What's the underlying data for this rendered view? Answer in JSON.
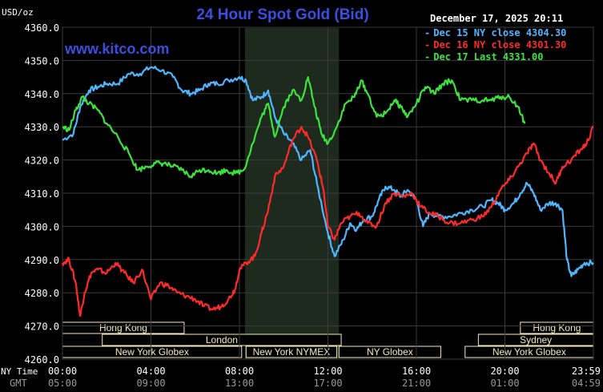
{
  "header": {
    "title": "24 Hour Spot Gold (Bid)",
    "site": "www.kitco.com",
    "date": "December 17, 2025 20:11",
    "unit": "USD/oz",
    "ny_time_label": "NY Time",
    "gmt_label": "GMT"
  },
  "colors": {
    "dec15": "#4fb6ff",
    "dec16": "#ff2a2a",
    "dec17": "#3de33d",
    "title": "#3a4fe0",
    "session_box": "#f5ecc0",
    "highlight": "#1e2a1e"
  },
  "chart_data": {
    "type": "line",
    "title": "24 Hour Spot Gold (Bid)",
    "ylabel": "USD/oz",
    "ylim": [
      4260,
      4360
    ],
    "yticks": [
      "4360.0",
      "4350.0",
      "4340.0",
      "4330.0",
      "4320.0",
      "4310.0",
      "4300.0",
      "4290.0",
      "4280.0",
      "4270.0",
      "4260.0"
    ],
    "xticks_ny": [
      "00:00",
      "04:00",
      "08:00",
      "12:00",
      "16:00",
      "20:00",
      "23:59"
    ],
    "xticks_gmt": [
      "05:00",
      "09:00",
      "13:00",
      "17:00",
      "21:00",
      "01:00",
      "04:59"
    ],
    "highlight_range_hours": [
      8.25,
      12.5
    ],
    "legend_placement": "top-right",
    "series": [
      {
        "name": "Dec 15 NY close 4304.30",
        "color": "#4fb6ff",
        "points": [
          [
            0,
            4326
          ],
          [
            0.5,
            4328
          ],
          [
            0.8,
            4336
          ],
          [
            1.2,
            4341
          ],
          [
            1.6,
            4342
          ],
          [
            2,
            4343
          ],
          [
            2.5,
            4343
          ],
          [
            3,
            4346
          ],
          [
            3.5,
            4346
          ],
          [
            4,
            4348
          ],
          [
            4.5,
            4347
          ],
          [
            5,
            4345
          ],
          [
            5.4,
            4341
          ],
          [
            5.8,
            4340
          ],
          [
            6.2,
            4341
          ],
          [
            6.6,
            4343
          ],
          [
            7,
            4343
          ],
          [
            7.5,
            4344
          ],
          [
            8,
            4345
          ],
          [
            8.3,
            4344
          ],
          [
            8.6,
            4338
          ],
          [
            9,
            4339
          ],
          [
            9.3,
            4341
          ],
          [
            9.6,
            4333
          ],
          [
            10,
            4328
          ],
          [
            10.4,
            4325
          ],
          [
            10.8,
            4320
          ],
          [
            11.2,
            4323
          ],
          [
            11.5,
            4313
          ],
          [
            12,
            4298
          ],
          [
            12.3,
            4291
          ],
          [
            12.7,
            4296
          ],
          [
            13,
            4301
          ],
          [
            13.3,
            4299
          ],
          [
            13.6,
            4302
          ],
          [
            14,
            4303
          ],
          [
            14.3,
            4308
          ],
          [
            14.6,
            4312
          ],
          [
            15,
            4311
          ],
          [
            15.3,
            4309
          ],
          [
            15.6,
            4311
          ],
          [
            16,
            4308
          ],
          [
            16.3,
            4300
          ],
          [
            16.6,
            4304
          ],
          [
            17,
            4303
          ],
          [
            17.5,
            4303
          ],
          [
            18,
            4304
          ],
          [
            18.5,
            4305
          ],
          [
            19,
            4306
          ],
          [
            19.4,
            4308
          ],
          [
            19.7,
            4307
          ],
          [
            20,
            4305
          ],
          [
            20.4,
            4307
          ],
          [
            20.7,
            4310
          ],
          [
            21,
            4313
          ],
          [
            21.3,
            4310
          ],
          [
            21.6,
            4305
          ],
          [
            22,
            4307
          ],
          [
            22.3,
            4307
          ],
          [
            22.6,
            4305
          ],
          [
            22.8,
            4290
          ],
          [
            23,
            4285
          ],
          [
            23.3,
            4287
          ],
          [
            23.6,
            4289
          ],
          [
            24,
            4289
          ]
        ]
      },
      {
        "name": "Dec 16 NY close 4301.30",
        "color": "#ff2a2a",
        "points": [
          [
            0,
            4289
          ],
          [
            0.3,
            4290
          ],
          [
            0.6,
            4283
          ],
          [
            0.8,
            4273
          ],
          [
            1,
            4280
          ],
          [
            1.3,
            4286
          ],
          [
            1.6,
            4287
          ],
          [
            2,
            4286
          ],
          [
            2.4,
            4289
          ],
          [
            2.8,
            4286
          ],
          [
            3.2,
            4283
          ],
          [
            3.6,
            4287
          ],
          [
            4,
            4278
          ],
          [
            4.4,
            4283
          ],
          [
            4.8,
            4282
          ],
          [
            5.2,
            4280
          ],
          [
            5.6,
            4279
          ],
          [
            6,
            4278
          ],
          [
            6.4,
            4276
          ],
          [
            6.8,
            4275
          ],
          [
            7.2,
            4276
          ],
          [
            7.5,
            4278
          ],
          [
            7.8,
            4281
          ],
          [
            8,
            4287
          ],
          [
            8.3,
            4289
          ],
          [
            8.7,
            4291
          ],
          [
            9,
            4298
          ],
          [
            9.3,
            4305
          ],
          [
            9.6,
            4315
          ],
          [
            10,
            4318
          ],
          [
            10.4,
            4326
          ],
          [
            10.8,
            4330
          ],
          [
            11.1,
            4327
          ],
          [
            11.5,
            4320
          ],
          [
            11.8,
            4311
          ],
          [
            12,
            4300
          ],
          [
            12.3,
            4296
          ],
          [
            12.6,
            4301
          ],
          [
            13,
            4303
          ],
          [
            13.4,
            4304
          ],
          [
            13.8,
            4301
          ],
          [
            14.2,
            4300
          ],
          [
            14.6,
            4307
          ],
          [
            15,
            4310
          ],
          [
            15.4,
            4309
          ],
          [
            15.8,
            4310
          ],
          [
            16.2,
            4306
          ],
          [
            16.6,
            4304
          ],
          [
            17,
            4303
          ],
          [
            17.5,
            4301
          ],
          [
            18,
            4301
          ],
          [
            18.5,
            4302
          ],
          [
            19,
            4303
          ],
          [
            19.4,
            4306
          ],
          [
            19.8,
            4311
          ],
          [
            20.2,
            4314
          ],
          [
            20.6,
            4318
          ],
          [
            21,
            4322
          ],
          [
            21.3,
            4325
          ],
          [
            21.6,
            4320
          ],
          [
            22,
            4316
          ],
          [
            22.3,
            4313
          ],
          [
            22.6,
            4318
          ],
          [
            23,
            4320
          ],
          [
            23.4,
            4323
          ],
          [
            23.7,
            4325
          ],
          [
            24,
            4330
          ]
        ]
      },
      {
        "name": "Dec 17 Last 4331.00",
        "color": "#3de33d",
        "points": [
          [
            0,
            4330
          ],
          [
            0.3,
            4329
          ],
          [
            0.6,
            4335
          ],
          [
            0.9,
            4339
          ],
          [
            1.2,
            4337
          ],
          [
            1.6,
            4335
          ],
          [
            2,
            4331
          ],
          [
            2.5,
            4327
          ],
          [
            3,
            4322
          ],
          [
            3.4,
            4317
          ],
          [
            3.8,
            4318
          ],
          [
            4.2,
            4319
          ],
          [
            4.6,
            4319
          ],
          [
            5,
            4318
          ],
          [
            5.4,
            4317
          ],
          [
            5.8,
            4315
          ],
          [
            6.2,
            4317
          ],
          [
            6.6,
            4317
          ],
          [
            7,
            4316
          ],
          [
            7.4,
            4317
          ],
          [
            7.8,
            4316
          ],
          [
            8.2,
            4317
          ],
          [
            8.6,
            4325
          ],
          [
            9,
            4333
          ],
          [
            9.3,
            4337
          ],
          [
            9.6,
            4327
          ],
          [
            10,
            4336
          ],
          [
            10.4,
            4341
          ],
          [
            10.8,
            4338
          ],
          [
            11.1,
            4345
          ],
          [
            11.4,
            4336
          ],
          [
            11.7,
            4328
          ],
          [
            12,
            4325
          ],
          [
            12.4,
            4330
          ],
          [
            12.8,
            4337
          ],
          [
            13.2,
            4339
          ],
          [
            13.5,
            4344
          ],
          [
            13.8,
            4340
          ],
          [
            14.2,
            4333
          ],
          [
            14.6,
            4334
          ],
          [
            15,
            4338
          ],
          [
            15.3,
            4336
          ],
          [
            15.6,
            4333
          ],
          [
            16,
            4337
          ],
          [
            16.4,
            4342
          ],
          [
            16.8,
            4340
          ],
          [
            17.2,
            4343
          ],
          [
            17.6,
            4344
          ],
          [
            18,
            4338
          ],
          [
            18.5,
            4338
          ],
          [
            19,
            4338
          ],
          [
            19.4,
            4338
          ],
          [
            19.8,
            4339
          ],
          [
            20.2,
            4339
          ],
          [
            20.6,
            4336
          ],
          [
            20.9,
            4331
          ]
        ]
      }
    ]
  },
  "sessions": {
    "row1": [
      {
        "label": "Hong Kong",
        "start": 0,
        "end": 5.5
      },
      {
        "label": "Hong Kong",
        "start": 20.7,
        "end": 24
      }
    ],
    "row2": [
      {
        "label": "London",
        "start": 1.8,
        "end": 12.6
      },
      {
        "label": "Sydney",
        "start": 18.8,
        "end": 24
      }
    ],
    "row3": [
      {
        "label": "New York Globex",
        "start": 0,
        "end": 8.1
      },
      {
        "label": "New York NYMEX",
        "start": 8.3,
        "end": 12.4
      },
      {
        "label": "NY Globex",
        "start": 12.5,
        "end": 17.1
      },
      {
        "label": "New York Globex",
        "start": 18.2,
        "end": 24
      }
    ]
  }
}
